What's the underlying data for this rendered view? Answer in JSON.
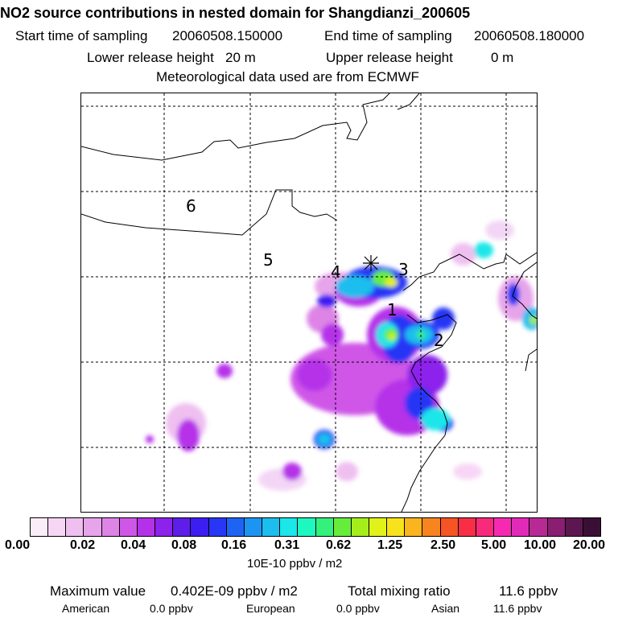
{
  "header": {
    "title": "NO2 source contributions in nested domain for Shangdianzi_200605",
    "start_label": "Start time of sampling",
    "start_value": "20060508.150000",
    "end_label": "End time of sampling",
    "end_value": "20060508.180000",
    "lower_label": "Lower release height",
    "lower_value": "20 m",
    "upper_label": "Upper release height",
    "upper_value": "0 m",
    "met": "Meteorological data used are from ECMWF"
  },
  "map": {
    "region_labels": [
      "1",
      "2",
      "3",
      "4",
      "5",
      "6"
    ],
    "site_marker": "Shangdianzi"
  },
  "colorbar": {
    "colors": [
      "#fbecf9",
      "#f7d6f5",
      "#efbff0",
      "#e6a4ea",
      "#dd84e6",
      "#cf57e7",
      "#b531e9",
      "#8c22eb",
      "#5f1de9",
      "#3d1ef0",
      "#2836f5",
      "#1d64f3",
      "#1c95f2",
      "#1cbeee",
      "#1be6e9",
      "#1ef7c0",
      "#34f07d",
      "#66ed3b",
      "#a5ee1c",
      "#e1f21a",
      "#f8e21c",
      "#f9b41e",
      "#f8841f",
      "#f65424",
      "#f72e46",
      "#f82a7b",
      "#f62ab2",
      "#e22ab8",
      "#b72a95",
      "#8a1f71",
      "#5c1750",
      "#3a0f36"
    ],
    "labels": [
      "0.00",
      "0.02",
      "0.04",
      "0.08",
      "0.16",
      "0.31",
      "0.62",
      "1.25",
      "2.50",
      "5.00",
      "10.00",
      "20.00"
    ],
    "unit": "10E-10 ppbv / m2"
  },
  "footer": {
    "max_label": "Maximum value",
    "max_value": "0.402E-09 ppbv / m2",
    "total_label": "Total mixing ratio",
    "total_value": "11.6 ppbv",
    "american_label": "American",
    "american_value": "0.0 ppbv",
    "european_label": "European",
    "european_value": "0.0 ppbv",
    "asian_label": "Asian",
    "asian_value": "11.6 ppbv"
  }
}
